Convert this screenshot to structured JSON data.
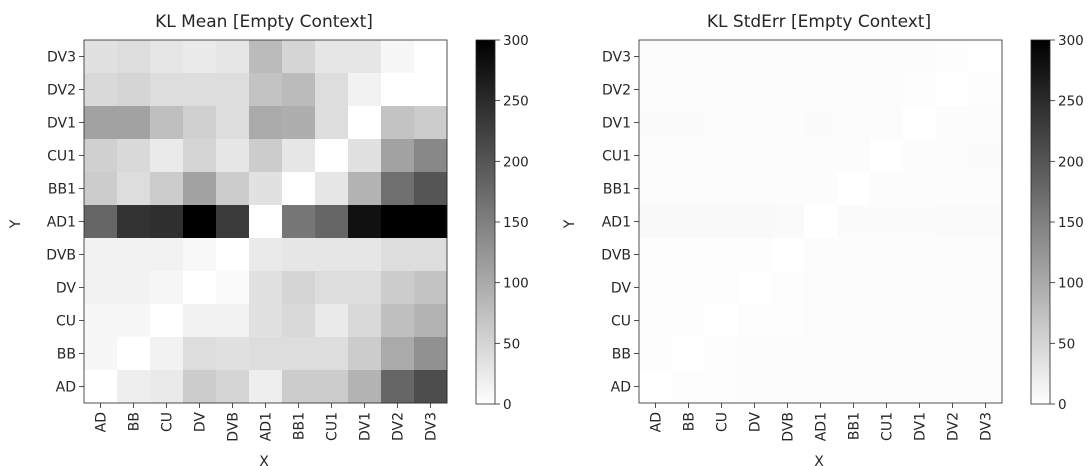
{
  "chart_data": [
    {
      "type": "heatmap",
      "title": "KL Mean [Empty Context]",
      "xlabel": "X",
      "ylabel": "Y",
      "x_categories": [
        "AD",
        "BB",
        "CU",
        "DV",
        "DVB",
        "AD1",
        "BB1",
        "CU1",
        "DV1",
        "DV2",
        "DV3"
      ],
      "y_categories": [
        "DV3",
        "DV2",
        "DV1",
        "CU1",
        "BB1",
        "AD1",
        "DVB",
        "DV",
        "CU",
        "BB",
        "AD"
      ],
      "values": [
        [
          35,
          40,
          30,
          25,
          30,
          80,
          50,
          30,
          30,
          10,
          0
        ],
        [
          45,
          50,
          40,
          40,
          40,
          70,
          80,
          40,
          15,
          0,
          0
        ],
        [
          110,
          110,
          75,
          55,
          40,
          100,
          95,
          40,
          0,
          70,
          60
        ],
        [
          55,
          45,
          25,
          50,
          30,
          60,
          30,
          0,
          35,
          110,
          140
        ],
        [
          60,
          40,
          60,
          110,
          60,
          35,
          0,
          30,
          90,
          170,
          200
        ],
        [
          180,
          240,
          245,
          300,
          230,
          0,
          160,
          180,
          280,
          300,
          300
        ],
        [
          15,
          15,
          15,
          8,
          0,
          25,
          30,
          30,
          30,
          40,
          40
        ],
        [
          15,
          15,
          10,
          0,
          5,
          35,
          50,
          40,
          40,
          60,
          70
        ],
        [
          10,
          10,
          0,
          15,
          15,
          35,
          45,
          25,
          45,
          75,
          90
        ],
        [
          10,
          0,
          15,
          40,
          35,
          40,
          40,
          40,
          60,
          100,
          130
        ],
        [
          0,
          20,
          25,
          60,
          50,
          20,
          60,
          60,
          90,
          180,
          210
        ]
      ],
      "zlim": [
        0,
        300
      ],
      "colormap": "greys",
      "colorbar_ticks": [
        0,
        50,
        100,
        150,
        200,
        250,
        300
      ]
    },
    {
      "type": "heatmap",
      "title": "KL StdErr [Empty Context]",
      "xlabel": "X",
      "ylabel": "Y",
      "x_categories": [
        "AD",
        "BB",
        "CU",
        "DV",
        "DVB",
        "AD1",
        "BB1",
        "CU1",
        "DV1",
        "DV2",
        "DV3"
      ],
      "y_categories": [
        "DV3",
        "DV2",
        "DV1",
        "CU1",
        "BB1",
        "AD1",
        "DVB",
        "DV",
        "CU",
        "BB",
        "AD"
      ],
      "values": [
        [
          3,
          3,
          3,
          3,
          3,
          3,
          3,
          3,
          3,
          2,
          0
        ],
        [
          3,
          3,
          3,
          3,
          3,
          4,
          3,
          3,
          2,
          0,
          2
        ],
        [
          5,
          5,
          4,
          4,
          3,
          5,
          4,
          3,
          0,
          4,
          4
        ],
        [
          4,
          3,
          3,
          3,
          3,
          4,
          3,
          0,
          3,
          4,
          5
        ],
        [
          3,
          3,
          3,
          3,
          3,
          3,
          0,
          3,
          3,
          4,
          4
        ],
        [
          7,
          7,
          7,
          7,
          6,
          0,
          5,
          5,
          5,
          6,
          6
        ],
        [
          2,
          2,
          2,
          2,
          0,
          3,
          3,
          3,
          3,
          3,
          3
        ],
        [
          2,
          2,
          2,
          0,
          2,
          3,
          3,
          3,
          3,
          3,
          3
        ],
        [
          2,
          2,
          0,
          2,
          2,
          3,
          3,
          3,
          3,
          3,
          3
        ],
        [
          2,
          0,
          2,
          3,
          3,
          3,
          3,
          3,
          3,
          4,
          4
        ],
        [
          0,
          2,
          2,
          3,
          3,
          3,
          3,
          3,
          4,
          4,
          4
        ]
      ],
      "zlim": [
        0,
        300
      ],
      "colormap": "greys",
      "colorbar_ticks": [
        0,
        50,
        100,
        150,
        200,
        250,
        300
      ]
    }
  ]
}
